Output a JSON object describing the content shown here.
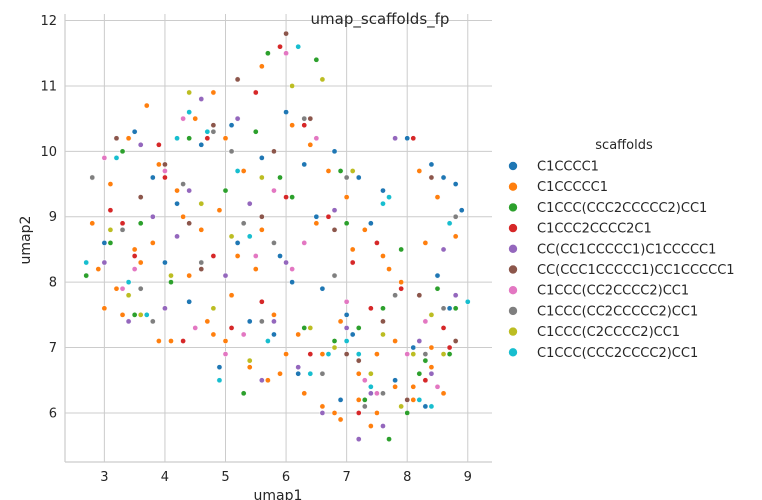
{
  "chart_data": {
    "type": "scatter",
    "title": "umap_scaffolds_fp",
    "xlabel": "umap1",
    "ylabel": "umap2",
    "xlim": [
      2.35,
      9.4
    ],
    "ylim": [
      5.25,
      12.1
    ],
    "xticks": [
      3,
      4,
      5,
      6,
      7,
      8,
      9
    ],
    "yticks": [
      6,
      7,
      8,
      9,
      10,
      11,
      12
    ],
    "grid": true,
    "legend": {
      "title": "scaffolds",
      "position": "right"
    },
    "series": [
      {
        "name": "C1CCCC1",
        "color": "#1f77b4",
        "x": [
          3.2,
          3.5,
          3.8,
          4.2,
          4.6,
          5.1,
          5.6,
          6.0,
          6.3,
          6.8,
          7.2,
          7.6,
          8.0,
          8.4,
          8.6,
          8.8,
          8.9,
          7.4,
          6.5,
          5.9,
          6.1,
          6.6,
          7.0,
          5.4,
          4.9,
          8.2,
          8.5,
          8.7,
          3.0,
          3.3,
          4.0,
          4.4,
          5.8,
          6.2,
          6.9,
          7.8,
          8.1,
          8.3,
          7.1,
          5.2
        ],
        "y": [
          9.9,
          10.3,
          9.6,
          9.2,
          10.1,
          10.4,
          9.9,
          10.6,
          9.8,
          10.0,
          9.6,
          9.4,
          10.2,
          9.8,
          9.6,
          9.5,
          9.1,
          8.9,
          9.0,
          8.4,
          8.0,
          7.9,
          7.5,
          7.4,
          6.7,
          7.8,
          8.1,
          7.6,
          8.6,
          8.8,
          8.3,
          7.7,
          7.2,
          6.6,
          6.2,
          6.5,
          7.0,
          6.1,
          7.2,
          8.6
        ]
      },
      {
        "name": "C1CCCCC1",
        "color": "#ff7f0e",
        "x": [
          2.8,
          3.1,
          3.4,
          3.7,
          3.9,
          4.2,
          4.5,
          4.8,
          5.0,
          5.3,
          5.6,
          5.9,
          6.1,
          6.4,
          6.7,
          7.0,
          7.3,
          7.6,
          7.9,
          8.2,
          8.5,
          8.7,
          3.2,
          3.6,
          4.0,
          4.4,
          4.7,
          5.1,
          5.5,
          5.8,
          6.2,
          6.6,
          6.9,
          7.2,
          7.5,
          7.8,
          8.1,
          8.4,
          2.9,
          3.3,
          3.8,
          4.1,
          4.6,
          5.0,
          5.4,
          5.7,
          6.0,
          6.3,
          6.6,
          6.9,
          7.2,
          7.5,
          7.8,
          8.1,
          8.4,
          8.6,
          3.5,
          4.3,
          4.9,
          5.2,
          5.6,
          6.5,
          7.1,
          7.7,
          8.3,
          8.8,
          3.0,
          3.9,
          4.8,
          5.9,
          6.8,
          7.4,
          8.0,
          8.6
        ],
        "y": [
          8.9,
          9.5,
          10.2,
          10.7,
          9.8,
          9.4,
          10.5,
          10.9,
          10.2,
          9.7,
          11.3,
          11.6,
          10.4,
          10.1,
          9.7,
          9.3,
          8.8,
          8.4,
          8.0,
          9.7,
          9.3,
          8.9,
          7.9,
          8.3,
          7.6,
          8.1,
          7.4,
          7.8,
          8.2,
          7.5,
          7.2,
          6.9,
          7.4,
          6.6,
          6.9,
          7.1,
          6.4,
          7.0,
          8.2,
          7.5,
          8.6,
          7.1,
          8.8,
          7.1,
          6.7,
          6.5,
          6.9,
          6.3,
          6.1,
          5.9,
          6.2,
          6.0,
          6.4,
          6.2,
          6.7,
          6.3,
          8.5,
          9.0,
          9.1,
          8.4,
          8.8,
          8.9,
          8.5,
          8.2,
          8.6,
          8.7,
          7.6,
          7.1,
          7.2,
          6.6,
          6.0,
          5.8,
          6.0,
          6.3
        ]
      },
      {
        "name": "C1CCC(CCC2CCCCC2)CC1",
        "color": "#2ca02c",
        "x": [
          2.7,
          3.1,
          3.5,
          4.6,
          5.3,
          5.7,
          6.1,
          6.5,
          6.9,
          7.3,
          7.7,
          8.0,
          8.3,
          8.8,
          3.3,
          4.1,
          5.0,
          6.3,
          7.0,
          7.6,
          8.2,
          8.7,
          5.5,
          6.8,
          7.9,
          3.6,
          4.4,
          5.9,
          7.2,
          8.5
        ],
        "y": [
          8.1,
          8.6,
          7.5,
          9.2,
          6.3,
          11.5,
          9.3,
          11.4,
          9.7,
          6.2,
          5.6,
          6.0,
          6.8,
          7.6,
          10.0,
          8.0,
          9.4,
          7.3,
          8.9,
          7.6,
          6.6,
          6.9,
          10.3,
          7.1,
          8.5,
          8.9,
          10.2,
          9.6,
          7.3,
          7.9
        ]
      },
      {
        "name": "C1CCC2CCCC2C1",
        "color": "#d62728",
        "x": [
          3.1,
          3.5,
          3.9,
          4.3,
          4.7,
          5.1,
          5.5,
          5.9,
          6.3,
          6.7,
          7.1,
          7.5,
          7.9,
          8.3,
          8.7,
          3.3,
          4.0,
          4.8,
          5.6,
          6.4,
          7.2,
          8.0,
          8.6,
          5.2,
          6.0,
          7.4,
          8.1
        ],
        "y": [
          9.1,
          8.4,
          10.1,
          7.1,
          10.2,
          7.3,
          10.9,
          11.6,
          10.4,
          9.0,
          8.3,
          8.6,
          7.9,
          6.5,
          7.0,
          8.9,
          9.6,
          8.4,
          7.7,
          6.9,
          6.0,
          6.2,
          7.3,
          11.1,
          9.3,
          7.6,
          10.2
        ]
      },
      {
        "name": "CC(CC1CCCCC1)C1CCCCC1",
        "color": "#9467bd",
        "x": [
          3.0,
          3.4,
          3.8,
          4.2,
          4.6,
          5.0,
          5.4,
          5.8,
          6.2,
          6.6,
          7.0,
          7.4,
          7.8,
          8.2,
          8.6,
          3.6,
          4.4,
          5.2,
          6.0,
          6.8,
          7.6,
          8.4,
          4.0,
          5.6,
          7.2,
          8.8
        ],
        "y": [
          8.3,
          7.4,
          9.0,
          8.7,
          10.8,
          8.1,
          9.2,
          7.4,
          6.7,
          6.0,
          7.3,
          6.3,
          10.2,
          7.1,
          8.5,
          10.1,
          9.4,
          10.5,
          8.3,
          9.1,
          5.8,
          6.6,
          7.6,
          6.5,
          5.6,
          7.8
        ]
      },
      {
        "name": "CC(CCC1CCCCC1)CC1CCCCC1",
        "color": "#8c564b",
        "x": [
          2.8,
          3.2,
          3.6,
          4.0,
          4.4,
          4.8,
          5.2,
          5.6,
          6.0,
          6.4,
          6.8,
          7.2,
          7.6,
          8.0,
          8.4,
          8.8,
          3.4,
          4.6,
          5.8,
          7.0,
          8.2
        ],
        "y": [
          9.6,
          10.2,
          9.3,
          9.8,
          8.9,
          10.4,
          11.1,
          9.0,
          11.8,
          10.5,
          8.8,
          6.8,
          7.4,
          6.2,
          9.6,
          7.1,
          8.0,
          8.2,
          10.0,
          6.9,
          7.8
        ]
      },
      {
        "name": "C1CCC(CC2CCCC2)CC1",
        "color": "#e377c2",
        "x": [
          3.0,
          3.5,
          4.0,
          4.5,
          5.0,
          5.5,
          6.0,
          6.5,
          7.0,
          7.5,
          8.0,
          8.5,
          3.3,
          4.3,
          5.3,
          6.3,
          7.3,
          8.3,
          6.1,
          5.8
        ],
        "y": [
          9.9,
          8.2,
          9.7,
          7.3,
          6.9,
          8.4,
          11.5,
          10.2,
          7.7,
          6.3,
          6.9,
          6.4,
          7.9,
          10.5,
          7.2,
          8.6,
          6.5,
          7.4,
          8.2,
          9.4
        ]
      },
      {
        "name": "C1CCC(CC2CCCCC2)CC1",
        "color": "#7f7f7f",
        "x": [
          2.8,
          3.3,
          3.8,
          4.3,
          4.8,
          5.3,
          5.8,
          6.3,
          6.8,
          7.3,
          7.8,
          8.3,
          8.8,
          3.6,
          4.6,
          5.6,
          6.6,
          7.6,
          8.6,
          5.1,
          7.0
        ],
        "y": [
          9.6,
          8.8,
          7.4,
          9.5,
          10.3,
          8.9,
          8.6,
          10.5,
          8.1,
          6.1,
          7.8,
          6.9,
          9.0,
          7.9,
          8.3,
          7.4,
          6.6,
          6.3,
          7.6,
          10.0,
          9.6
        ]
      },
      {
        "name": "C1CCC(C2CCCC2)CC1",
        "color": "#bcbd22",
        "x": [
          3.1,
          3.6,
          4.1,
          4.6,
          5.1,
          5.6,
          6.1,
          6.6,
          7.1,
          7.6,
          8.1,
          8.6,
          3.4,
          4.4,
          5.4,
          6.4,
          7.4,
          8.4,
          4.8,
          6.8,
          7.9
        ],
        "y": [
          8.8,
          7.5,
          8.1,
          9.2,
          8.7,
          9.6,
          11.0,
          11.1,
          9.7,
          7.2,
          6.9,
          6.9,
          7.8,
          10.9,
          6.8,
          7.3,
          6.6,
          7.5,
          7.6,
          7.0,
          6.1
        ]
      },
      {
        "name": "C1CCC(CCC2CCCC2)CC1",
        "color": "#17becf",
        "x": [
          2.7,
          3.2,
          3.7,
          4.2,
          4.7,
          5.2,
          5.7,
          6.2,
          6.7,
          7.2,
          7.7,
          8.2,
          8.7,
          9.0,
          3.4,
          4.4,
          5.4,
          6.4,
          7.4,
          8.4,
          4.9,
          7.0,
          7.6
        ],
        "y": [
          8.3,
          9.9,
          7.5,
          10.2,
          10.3,
          9.7,
          7.1,
          11.6,
          6.9,
          6.9,
          9.3,
          6.2,
          8.9,
          7.7,
          8.0,
          10.6,
          8.7,
          6.6,
          6.4,
          6.1,
          6.5,
          7.1,
          9.2
        ]
      }
    ]
  }
}
